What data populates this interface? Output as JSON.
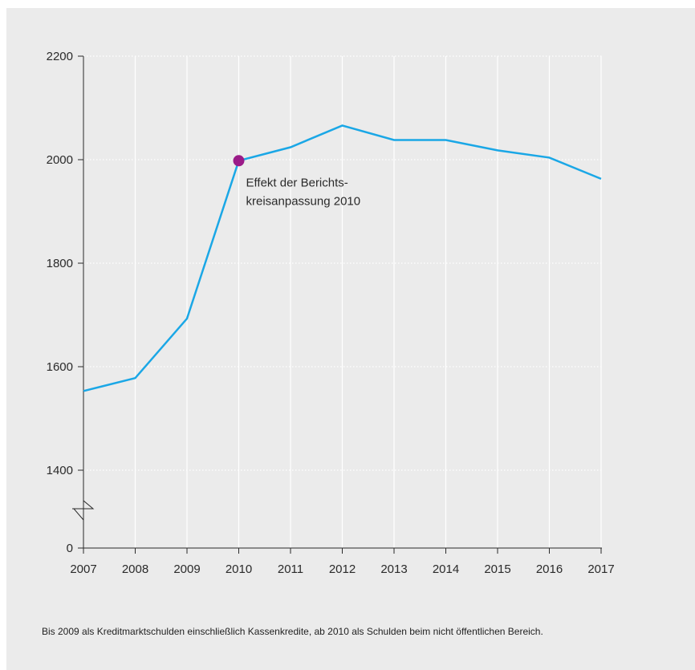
{
  "chart_data": {
    "type": "line",
    "x": [
      "2007",
      "2008",
      "2009",
      "2010",
      "2011",
      "2012",
      "2013",
      "2014",
      "2015",
      "2016",
      "2017"
    ],
    "series": [
      {
        "values": [
          1553,
          1578,
          1693,
          1998,
          2024,
          2066,
          2038,
          2038,
          2018,
          2004,
          1963
        ]
      }
    ],
    "y_ticks": [
      0,
      1400,
      1600,
      1800,
      2000,
      2200
    ],
    "ylim": [
      1300,
      2200
    ],
    "axis_break": true,
    "grid": true,
    "highlight": {
      "x": "2010",
      "value": 1998
    },
    "annotation": {
      "lines": [
        "Effekt der Berichts-",
        "kreisanpassung 2010"
      ]
    },
    "colors": {
      "line": "#1aa7e6",
      "marker": "#9b1b88",
      "grid": "#ffffff",
      "axis": "#2a2a2a",
      "background": "#ebebeb"
    }
  },
  "footnote": "Bis 2009 als Kreditmarktschulden einschließlich Kassenkredite, ab 2010 als Schulden beim nicht öffentlichen Bereich."
}
